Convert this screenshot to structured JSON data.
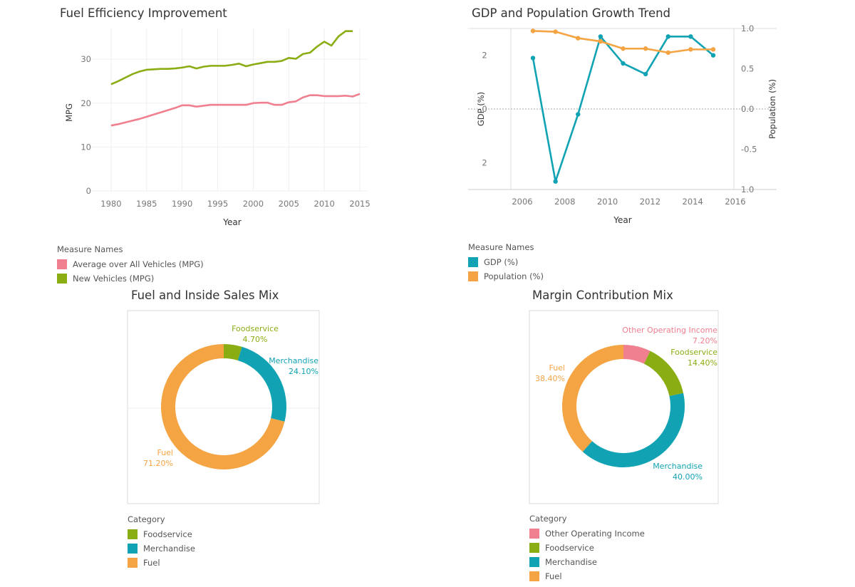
{
  "chart_data": [
    {
      "type": "line",
      "title": "Fuel Efficiency Improvement",
      "xlabel": "Year",
      "ylabel": "MPG",
      "xlim": [
        1977,
        2016
      ],
      "ylim": [
        0,
        37
      ],
      "xticks": [
        1980,
        1985,
        1990,
        1995,
        2000,
        2005,
        2010,
        2015
      ],
      "yticks": [
        0,
        10,
        20,
        30
      ],
      "grid": true,
      "x": [
        1980,
        1981,
        1982,
        1983,
        1984,
        1985,
        1986,
        1987,
        1988,
        1989,
        1990,
        1991,
        1992,
        1993,
        1994,
        1995,
        1996,
        1997,
        1998,
        1999,
        2000,
        2001,
        2002,
        2003,
        2004,
        2005,
        2006,
        2007,
        2008,
        2009,
        2010,
        2011,
        2012,
        2013,
        2014,
        2015
      ],
      "series": [
        {
          "name": "Average over All Vehicles (MPG)",
          "color": "#F07F8F",
          "values": [
            14.9,
            15.2,
            15.6,
            16.0,
            16.4,
            16.9,
            17.4,
            17.9,
            18.4,
            18.9,
            19.5,
            19.5,
            19.2,
            19.4,
            19.6,
            19.6,
            19.6,
            19.6,
            19.6,
            19.6,
            20.0,
            20.1,
            20.1,
            19.6,
            19.6,
            20.2,
            20.4,
            21.3,
            21.8,
            21.8,
            21.6,
            21.6,
            21.6,
            21.7,
            21.5,
            22.1
          ]
        },
        {
          "name": "New Vehicles (MPG)",
          "color": "#8BAD14",
          "values": [
            24.3,
            25.0,
            25.8,
            26.6,
            27.2,
            27.6,
            27.7,
            27.8,
            27.8,
            27.9,
            28.1,
            28.4,
            27.9,
            28.3,
            28.5,
            28.5,
            28.5,
            28.7,
            29.0,
            28.4,
            28.8,
            29.1,
            29.4,
            29.4,
            29.6,
            30.3,
            30.1,
            31.2,
            31.5,
            32.9,
            34.0,
            33.1,
            35.2,
            36.4,
            36.4,
            null
          ]
        }
      ],
      "legend": {
        "title": "Measure Names",
        "placement": "bottom-left"
      }
    },
    {
      "type": "line",
      "title": "GDP and Population Growth Trend",
      "xlabel": "Year",
      "ylabel": "GDP (%)",
      "ylabel_right": "Population (%)",
      "xlim": [
        2005.3,
        2016.8
      ],
      "ylim": [
        -3.0,
        3.0
      ],
      "ylim_right": [
        -1.0,
        1.0
      ],
      "xticks": [
        2006,
        2008,
        2010,
        2012,
        2014,
        2016
      ],
      "yticks_left": [
        2,
        0,
        2
      ],
      "yticks_right": [
        "1.0",
        "0.5",
        "0.0",
        "-0.5",
        "1.0"
      ],
      "x": [
        2007,
        2008,
        2009,
        2010,
        2011,
        2012,
        2013,
        2014,
        2015
      ],
      "series": [
        {
          "name": "GDP (%)",
          "axis": "left",
          "color": "#11A3B3",
          "values": [
            1.9,
            -2.7,
            -0.2,
            2.7,
            1.7,
            1.3,
            2.7,
            2.7,
            2.0
          ]
        },
        {
          "name": "Population (%)",
          "axis": "right",
          "color": "#F4A442",
          "values": [
            0.97,
            0.96,
            0.88,
            0.84,
            0.75,
            0.75,
            0.7,
            0.74,
            0.74
          ]
        }
      ],
      "legend": {
        "title": "Measure Names",
        "placement": "bottom-left"
      }
    },
    {
      "type": "pie",
      "title": "Fuel and Inside Sales Mix",
      "start_angle_deg": 0,
      "slices": [
        {
          "label": "Foodservice",
          "value": 4.7,
          "text": "4.70%",
          "color": "#8BAD14"
        },
        {
          "label": "Merchandise",
          "value": 24.1,
          "text": "24.10%",
          "color": "#11A3B3"
        },
        {
          "label": "Fuel",
          "value": 71.2,
          "text": "71.20%",
          "color": "#F4A442"
        }
      ],
      "legend": {
        "title": "Category",
        "placement": "bottom-left"
      }
    },
    {
      "type": "pie",
      "title": "Margin Contribution Mix",
      "start_angle_deg": 0,
      "slices": [
        {
          "label": "Other Operating Income",
          "value": 7.2,
          "text": "7.20%",
          "color": "#F07F8F"
        },
        {
          "label": "Foodservice",
          "value": 14.4,
          "text": "14.40%",
          "color": "#8BAD14"
        },
        {
          "label": "Merchandise",
          "value": 40.0,
          "text": "40.00%",
          "color": "#11A3B3"
        },
        {
          "label": "Fuel",
          "value": 38.4,
          "text": "38.40%",
          "color": "#F4A442"
        }
      ],
      "legend": {
        "title": "Category",
        "placement": "bottom-left"
      }
    }
  ]
}
